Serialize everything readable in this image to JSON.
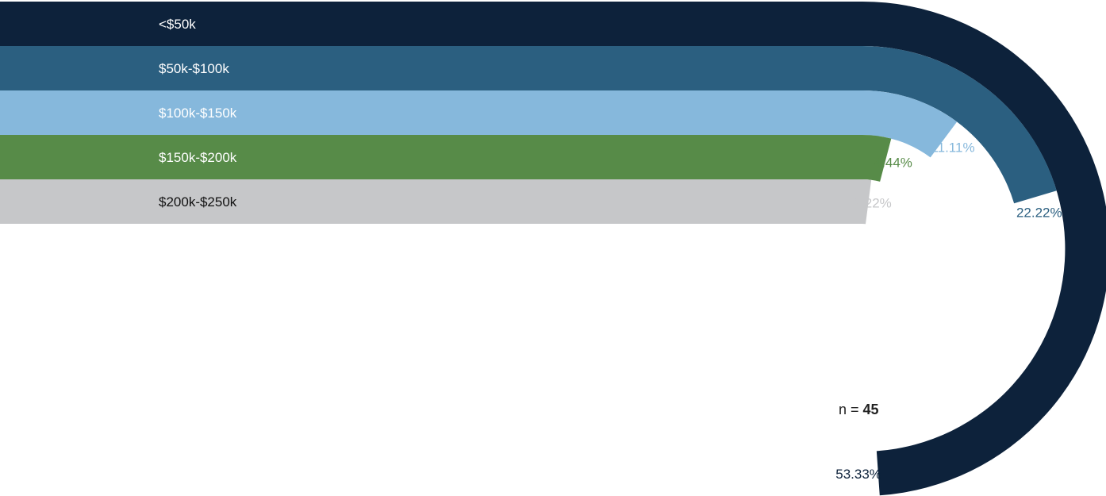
{
  "chart_data": {
    "type": "radial-bar",
    "categories": [
      "<$50k",
      "$50k-$100k",
      "$100k-$150k",
      "$150k-$200k",
      "$200k-$250k"
    ],
    "values": [
      53.33,
      22.22,
      11.11,
      4.44,
      2.22
    ],
    "value_labels": [
      "53.33%",
      "22.22%",
      "11.11%",
      "4.44%",
      "2.22%"
    ],
    "colors": [
      "#0d223b",
      "#2b5f80",
      "#86b8dc",
      "#578b48",
      "#c6c7c9"
    ],
    "label_colors": [
      "#ffffff",
      "#ffffff",
      "#ffffff",
      "#ffffff",
      "#111111"
    ],
    "pct_label_colors": [
      "#0d223b",
      "#2b5f80",
      "#86b8dc",
      "#578b48",
      "#c6c7c9"
    ],
    "full_scale_percent": 100,
    "grid": false,
    "legend": "none"
  },
  "sample": {
    "prefix": "n = ",
    "value": "45"
  }
}
